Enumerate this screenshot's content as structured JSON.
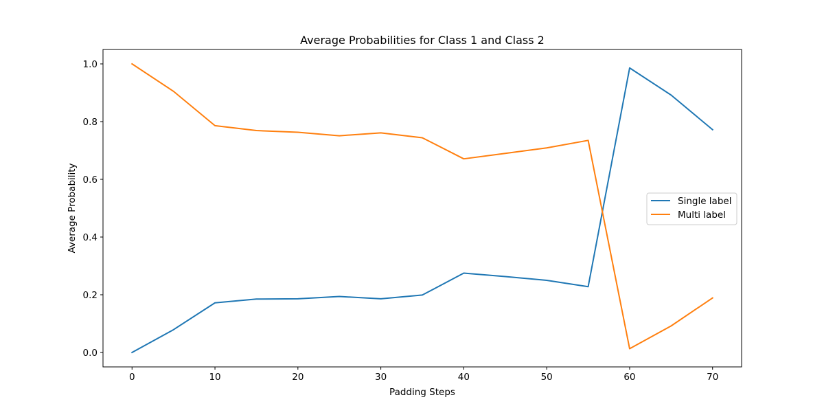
{
  "chart_data": {
    "type": "line",
    "title": "Average Probabilities for Class 1 and Class 2",
    "xlabel": "Padding Steps",
    "ylabel": "Average Probability",
    "x": [
      0,
      5,
      10,
      15,
      20,
      25,
      30,
      35,
      40,
      45,
      50,
      55,
      60,
      65,
      70
    ],
    "xlim": [
      -3.5,
      73.5
    ],
    "ylim": [
      -0.05,
      1.05
    ],
    "xticks": [
      0,
      10,
      20,
      30,
      40,
      50,
      60,
      70
    ],
    "xtick_labels": [
      "0",
      "10",
      "20",
      "30",
      "40",
      "50",
      "60",
      "70"
    ],
    "yticks": [
      0.0,
      0.2,
      0.4,
      0.6,
      0.8,
      1.0
    ],
    "ytick_labels": [
      "0.0",
      "0.2",
      "0.4",
      "0.6",
      "0.8",
      "1.0"
    ],
    "grid": false,
    "legend_position": "center right",
    "series": [
      {
        "name": "Single label",
        "color": "#1f77b4",
        "values": [
          0.0,
          0.079,
          0.172,
          0.185,
          0.186,
          0.194,
          0.186,
          0.199,
          0.275,
          0.263,
          0.25,
          0.228,
          0.986,
          0.892,
          0.772
        ]
      },
      {
        "name": "Multi label",
        "color": "#ff7f0e",
        "values": [
          1.0,
          0.905,
          0.786,
          0.769,
          0.763,
          0.751,
          0.761,
          0.744,
          0.671,
          0.69,
          0.709,
          0.735,
          0.013,
          0.092,
          0.189
        ]
      }
    ]
  }
}
